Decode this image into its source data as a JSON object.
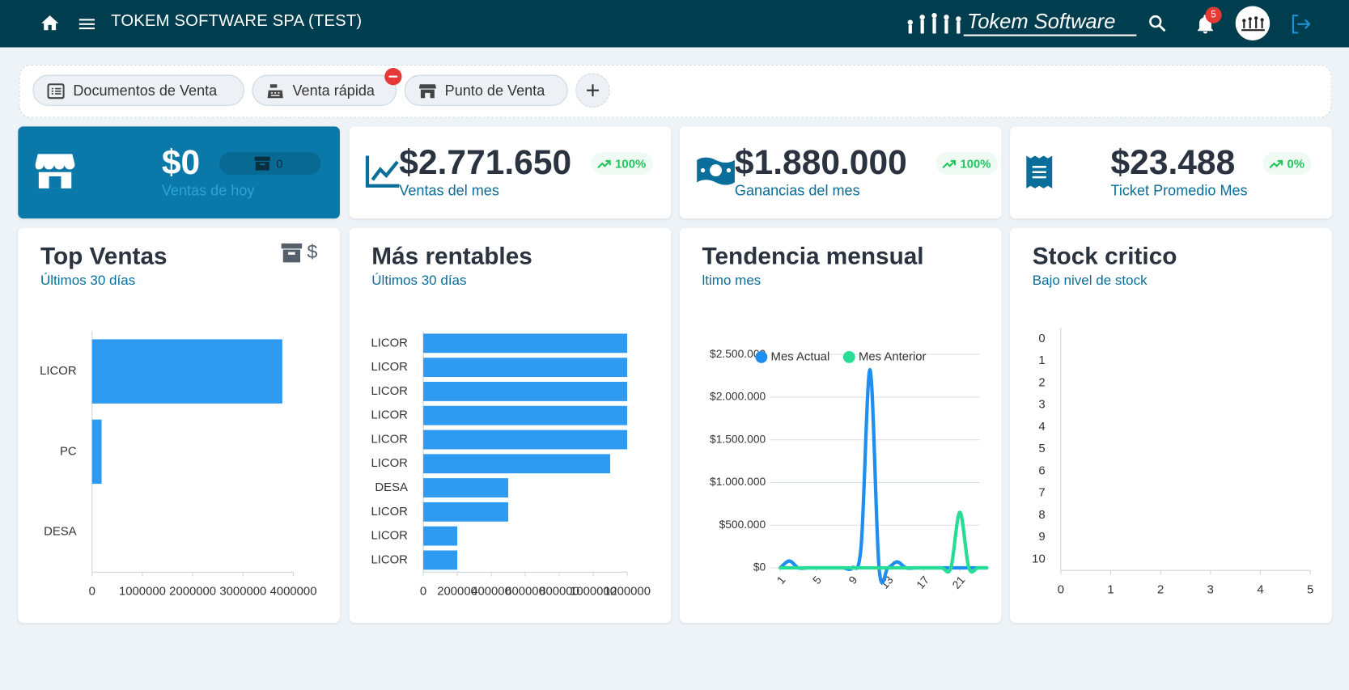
{
  "header": {
    "title": "TOKEM SOFTWARE SPA (TEST)",
    "brand": "Tokem Software",
    "notification_count": "5"
  },
  "shortcuts": [
    "Documentos de Venta",
    "Venta rápida",
    "Punto de Venta"
  ],
  "stats": [
    {
      "value": "$0",
      "label": "Ventas de hoy",
      "count": "0"
    },
    {
      "value": "$2.771.650",
      "label": "Ventas del mes",
      "change": "100%"
    },
    {
      "value": "$1.880.000",
      "label": "Ganancias del mes",
      "change": "100%"
    },
    {
      "value": "$23.488",
      "label": "Ticket Promedio Mes",
      "change": "0%"
    }
  ],
  "chart_data": [
    {
      "type": "bar",
      "orientation": "horizontal",
      "title": "Top Ventas",
      "subtitle": "Últimos 30 días",
      "categories": [
        "LICOR",
        "PC",
        "DESA"
      ],
      "values": [
        3780000,
        190000,
        0
      ],
      "color": "#2f9bf0",
      "xlim": [
        0,
        4000000
      ],
      "xticks": [
        0,
        1000000,
        2000000,
        3000000,
        4000000
      ]
    },
    {
      "type": "bar",
      "orientation": "horizontal",
      "title": "Más rentables",
      "subtitle": "Últimos 30 días",
      "categories": [
        "LICOR",
        "LICOR",
        "LICOR",
        "LICOR",
        "LICOR",
        "LICOR",
        "DESA",
        "LICOR",
        "LICOR",
        "LICOR"
      ],
      "values": [
        1200000,
        1200000,
        1200000,
        1200000,
        1200000,
        1100000,
        500000,
        500000,
        200000,
        200000
      ],
      "color": "#2f9bf0",
      "xlim": [
        0,
        1200000
      ],
      "xticks": [
        0,
        200000,
        400000,
        600000,
        800000,
        1000000,
        1200000
      ]
    },
    {
      "type": "line",
      "title": "Tendencia mensual",
      "subtitle": "ltimo mes",
      "x": [
        1,
        2,
        3,
        4,
        5,
        6,
        7,
        8,
        9,
        10,
        11,
        12,
        13,
        14,
        15,
        16,
        17,
        18,
        19,
        20,
        21,
        22,
        23,
        24
      ],
      "series": [
        {
          "name": "Mes Actual",
          "color": "#1e8ff0",
          "values": [
            0,
            80000,
            0,
            0,
            0,
            0,
            0,
            0,
            0,
            250000,
            2320000,
            0,
            0,
            70000,
            0,
            0,
            0,
            0,
            0,
            0,
            0,
            0,
            0,
            0
          ]
        },
        {
          "name": "Mes Anterior",
          "color": "#27dc94",
          "values": [
            0,
            0,
            0,
            0,
            0,
            0,
            0,
            0,
            0,
            0,
            0,
            0,
            0,
            0,
            0,
            0,
            0,
            0,
            0,
            0,
            650000,
            0,
            0,
            0
          ]
        }
      ],
      "xlim": [
        1,
        24
      ],
      "xticks": [
        1,
        5,
        9,
        13,
        17,
        21
      ],
      "ylim": [
        0,
        2500000
      ],
      "yticks": [
        {
          "value": 0,
          "label": "$0"
        },
        {
          "value": 500000,
          "label": "$500.000"
        },
        {
          "value": 1000000,
          "label": "$1.000.000"
        },
        {
          "value": 1500000,
          "label": "$1.500.000"
        },
        {
          "value": 2000000,
          "label": "$2.000.000"
        },
        {
          "value": 2500000,
          "label": "$2.500.000"
        }
      ],
      "grid": true,
      "legend": "top"
    },
    {
      "type": "bar",
      "orientation": "horizontal",
      "title": "Stock critico",
      "subtitle": "Bajo nivel de stock",
      "categories": [
        "0",
        "1",
        "2",
        "3",
        "4",
        "5",
        "6",
        "7",
        "8",
        "9",
        "10"
      ],
      "color": "#2f9bf0",
      "xlim": [
        0,
        5
      ],
      "xticks": [
        0,
        1,
        2,
        3,
        4,
        5
      ]
    }
  ]
}
